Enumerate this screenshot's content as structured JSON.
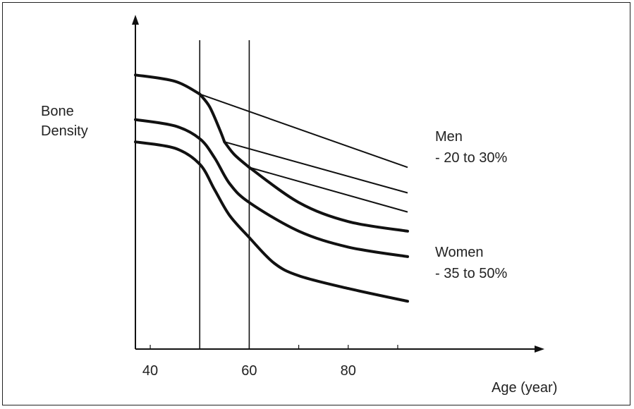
{
  "chart_data": {
    "type": "line",
    "title": "",
    "xlabel": "Age (year)",
    "ylabel_lines": [
      "Bone",
      "Density"
    ],
    "x_ticks": [
      40,
      50,
      60,
      70,
      80,
      90
    ],
    "x_tick_labels": [
      40,
      60,
      80
    ],
    "xlim": [
      37,
      93
    ],
    "ylim": [
      0,
      100
    ],
    "vertical_lines": [
      50,
      60
    ],
    "series": [
      {
        "group": "men",
        "points": [
          [
            37,
            86
          ],
          [
            45,
            84
          ],
          [
            50,
            80
          ],
          [
            92,
            57
          ]
        ]
      },
      {
        "group": "men",
        "points": [
          [
            50,
            80
          ],
          [
            52,
            76
          ],
          [
            54,
            69
          ],
          [
            55,
            65
          ],
          [
            92,
            49
          ]
        ]
      },
      {
        "group": "men",
        "points": [
          [
            55,
            65
          ],
          [
            57,
            61
          ],
          [
            60,
            57
          ],
          [
            92,
            43
          ]
        ]
      },
      {
        "group": "women",
        "points": [
          [
            60,
            57
          ],
          [
            70,
            46
          ],
          [
            80,
            40
          ],
          [
            92,
            37
          ]
        ]
      },
      {
        "group": "women",
        "points": [
          [
            37,
            72
          ],
          [
            45,
            70
          ],
          [
            50,
            66
          ],
          [
            53,
            60
          ],
          [
            56,
            52
          ],
          [
            60,
            46
          ],
          [
            70,
            37
          ],
          [
            80,
            32
          ],
          [
            92,
            29
          ]
        ]
      },
      {
        "group": "women",
        "points": [
          [
            37,
            65
          ],
          [
            45,
            63
          ],
          [
            50,
            58
          ],
          [
            53,
            50
          ],
          [
            56,
            42
          ],
          [
            60,
            35
          ],
          [
            65,
            27
          ],
          [
            70,
            23
          ],
          [
            80,
            19
          ],
          [
            92,
            15
          ]
        ]
      }
    ],
    "annotations": [
      {
        "lines": [
          "Men",
          "- 20 to 30%"
        ],
        "x": 0.925,
        "y": 0.6
      },
      {
        "lines": [
          "Women",
          "- 35 to 50%"
        ],
        "x": 0.925,
        "y": 0.27
      }
    ],
    "grid": false,
    "legend": "none"
  }
}
